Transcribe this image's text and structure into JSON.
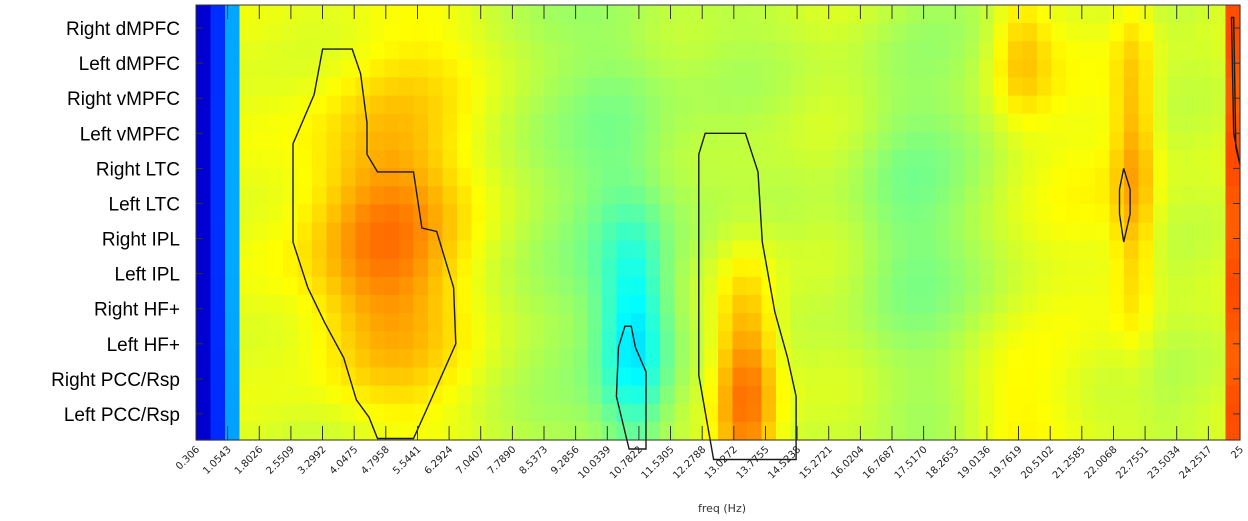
{
  "chart_data": {
    "type": "heatmap",
    "xlabel": "freq (Hz)",
    "rows": [
      "Right dMPFC",
      "Left dMPFC",
      "Right vMPFC",
      "Left vMPFC",
      "Right LTC",
      "Left LTC",
      "Right IPL",
      "Left IPL",
      "Right HF+",
      "Left HF+",
      "Right PCC/Rsp",
      "Left PCC/Rsp"
    ],
    "x_ticks": [
      "0.306",
      "1.0543",
      "1.8026",
      "2.5509",
      "3.2992",
      "4.0475",
      "4.7958",
      "5.5441",
      "6.2924",
      "7.0407",
      "7.7890",
      "8.5373",
      "9.2856",
      "10.0339",
      "10.7822",
      "11.5305",
      "12.2788",
      "13.0272",
      "13.7755",
      "14.5238",
      "15.2721",
      "16.0204",
      "16.7687",
      "17.5170",
      "18.2653",
      "19.0136",
      "19.7619",
      "20.5102",
      "21.2585",
      "22.0068",
      "22.7551",
      "23.5034",
      "24.2517",
      "25"
    ],
    "xlim": [
      0.306,
      25
    ],
    "colormap": [
      "#00007f",
      "#0000ff",
      "#007fff",
      "#00ffff",
      "#7fff7f",
      "#ffff00",
      "#ff7f00",
      "#ff0000",
      "#7f0000"
    ],
    "grid": false,
    "legend": "none"
  }
}
